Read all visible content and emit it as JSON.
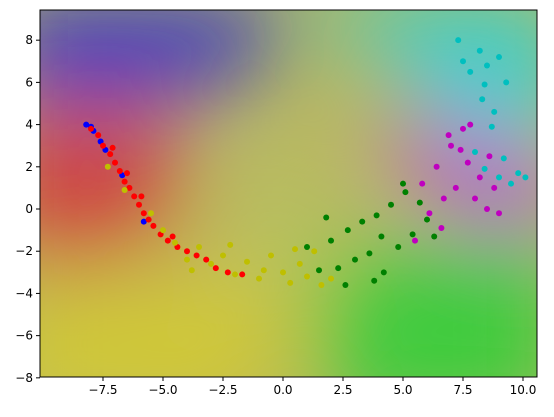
{
  "chart_data": {
    "type": "scatter",
    "xlim": [
      -10.125,
      10.583
    ],
    "ylim": [
      -7.96,
      9.43
    ],
    "xticks": [
      {
        "value": -7.5,
        "label": "−7.5"
      },
      {
        "value": -5,
        "label": "−5.0"
      },
      {
        "value": -2.5,
        "label": "−2.5"
      },
      {
        "value": 0,
        "label": "0.0"
      },
      2.5,
      {
        "value": 5,
        "label": "5.0"
      },
      7.5,
      {
        "value": 10,
        "label": "10.0"
      }
    ],
    "yticks": [
      {
        "value": -8,
        "label": "−8"
      },
      {
        "value": -6,
        "label": "−6"
      },
      {
        "value": -4,
        "label": "−4"
      },
      {
        "value": -2,
        "label": "−2"
      },
      0,
      2,
      4,
      6,
      8
    ],
    "series": [
      {
        "color": "#0000ff",
        "x": [
          -8.2,
          -8.0,
          -7.9,
          -7.6,
          -7.4,
          -6.7,
          -5.8
        ],
        "y": [
          4.0,
          3.9,
          3.7,
          3.2,
          2.8,
          1.6,
          -0.6
        ]
      },
      {
        "color": "#ff0000",
        "x": [
          -8,
          -7.7,
          -7.5,
          -7.2,
          -7,
          -6.8,
          -6.6,
          -6.4,
          -6.2,
          -6,
          -5.8,
          -5.6,
          -5.4,
          -5.1,
          -4.8,
          -4.4,
          -4,
          -3.6,
          -3.2,
          -2.8,
          -2.3,
          -1.7,
          -7.1,
          -6.5,
          -5.9,
          -4.6
        ],
        "y": [
          3.8,
          3.5,
          3.0,
          2.6,
          2.2,
          1.8,
          1.3,
          1.0,
          0.6,
          0.2,
          -0.2,
          -0.5,
          -0.8,
          -1.2,
          -1.5,
          -1.8,
          -2.0,
          -2.2,
          -2.4,
          -2.8,
          -3.0,
          -3.1,
          2.9,
          1.7,
          0.6,
          -1.3
        ]
      },
      {
        "color": "#bfbf00",
        "x": [
          -7.3,
          -6.6,
          -5.5,
          -5,
          -4.5,
          -4,
          -3.5,
          -3,
          -2.5,
          -2,
          -1.5,
          -1,
          -0.5,
          0,
          0.3,
          0.7,
          1,
          1.3,
          1.6,
          -2.2,
          -0.8,
          0.5,
          -3.8,
          2.0
        ],
        "y": [
          2.0,
          0.9,
          -0.2,
          -1.0,
          -1.6,
          -2.4,
          -1.8,
          -2.6,
          -2.2,
          -3.1,
          -2.5,
          -3.3,
          -2.2,
          -3.0,
          -3.5,
          -2.6,
          -3.2,
          -2.0,
          -3.6,
          -1.7,
          -2.9,
          -1.9,
          -2.9,
          -3.3
        ]
      },
      {
        "color": "#008000",
        "x": [
          1.0,
          1.5,
          2,
          2.3,
          2.7,
          3,
          3.3,
          3.6,
          3.9,
          4.2,
          4.5,
          4.8,
          5.1,
          5.4,
          5.7,
          6,
          6.3,
          2.6,
          3.8,
          5,
          4.1,
          1.8
        ],
        "y": [
          -1.8,
          -2.9,
          -1.5,
          -2.8,
          -1.0,
          -2.4,
          -0.6,
          -2.1,
          -0.3,
          -3.0,
          0.2,
          -1.8,
          0.8,
          -1.2,
          0.3,
          -0.5,
          -1.3,
          -3.6,
          -3.4,
          1.2,
          -1.3,
          -0.4
        ]
      },
      {
        "color": "#bf00bf",
        "x": [
          5.5,
          5.8,
          6.1,
          6.4,
          6.7,
          7,
          7.2,
          7.5,
          7.7,
          8,
          8.2,
          8.5,
          8.8,
          7.8,
          6.6,
          7.4,
          8.6,
          9,
          6.9
        ],
        "y": [
          -1.5,
          1.2,
          -0.2,
          2.0,
          0.5,
          3.0,
          1.0,
          3.8,
          2.2,
          0.5,
          1.5,
          0.0,
          1.0,
          4.0,
          -0.9,
          2.8,
          2.5,
          -0.2,
          3.5
        ]
      },
      {
        "color": "#00bfbf",
        "x": [
          7.5,
          7.8,
          8.2,
          8.5,
          9,
          9.3,
          8.3,
          8.8,
          8.0,
          8.4,
          9.5,
          9.8,
          10.1,
          9.2,
          9.0,
          8.7,
          7.3,
          8.4
        ],
        "y": [
          7.0,
          6.5,
          7.5,
          6.8,
          7.2,
          6.0,
          5.2,
          4.6,
          2.7,
          1.9,
          1.2,
          1.7,
          1.5,
          2.4,
          1.5,
          3.9,
          8.0,
          5.9
        ]
      }
    ]
  }
}
